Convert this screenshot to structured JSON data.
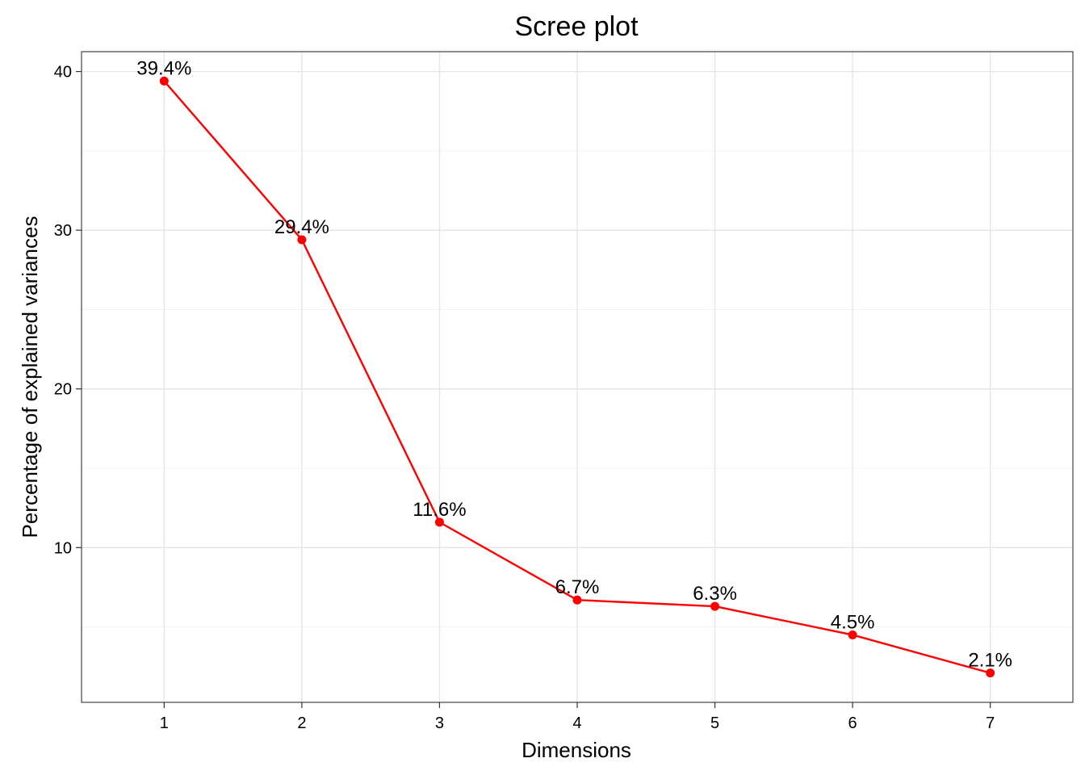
{
  "chart_data": {
    "type": "line",
    "title": "Scree plot",
    "xlabel": "Dimensions",
    "ylabel": "Percentage of explained variances",
    "categories": [
      "1",
      "2",
      "3",
      "4",
      "5",
      "6",
      "7"
    ],
    "values": [
      39.4,
      29.4,
      11.6,
      6.7,
      6.3,
      4.5,
      2.1
    ],
    "data_labels": [
      "39.4%",
      "29.4%",
      "11.6%",
      "6.7%",
      "6.3%",
      "4.5%",
      "2.1%"
    ],
    "yticks": [
      "10",
      "20",
      "30",
      "40"
    ],
    "ylim": [
      0.25,
      41.25
    ],
    "xlim": [
      0.4,
      7.6
    ],
    "grid": true,
    "legend": "none",
    "colors": {
      "line": "#ff0000",
      "point": "#ff0000"
    }
  }
}
